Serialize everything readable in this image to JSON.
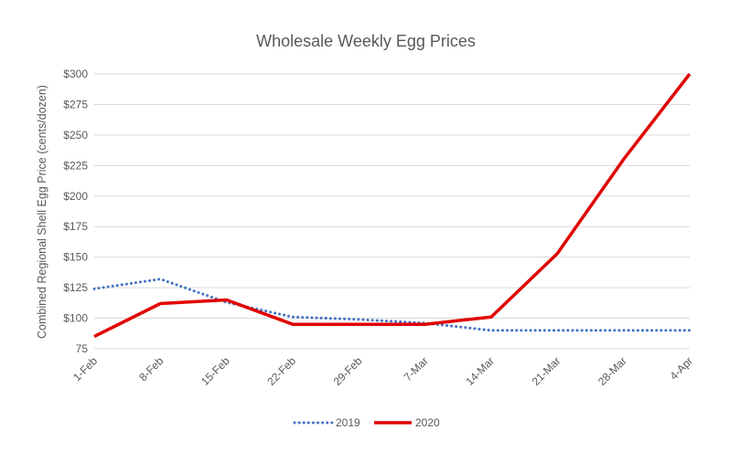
{
  "chart_data": {
    "type": "line",
    "title": "Wholesale Weekly Egg Prices",
    "xlabel": "",
    "ylabel": "Combined Regional Shell Egg Price (cents/dozen)",
    "categories": [
      "1-Feb",
      "8-Feb",
      "15-Feb",
      "22-Feb",
      "29-Feb",
      "7-Mar",
      "14-Mar",
      "21-Mar",
      "28-Mar",
      "4-Apr"
    ],
    "ylim": [
      75,
      300
    ],
    "yticks": [
      75,
      100,
      125,
      150,
      175,
      200,
      225,
      250,
      275,
      300
    ],
    "ytick_labels": [
      "75",
      "$100",
      "$125",
      "$150",
      "$175",
      "$200",
      "$225",
      "$250",
      "$275",
      "$300"
    ],
    "grid": true,
    "legend_position": "bottom",
    "series": [
      {
        "name": "2019",
        "color": "#4472c4",
        "style": "dotted",
        "values": [
          124,
          132,
          113,
          101,
          99,
          96,
          90,
          90,
          90,
          90
        ]
      },
      {
        "name": "2020",
        "color": "#e00000",
        "style": "solid",
        "values": [
          85,
          112,
          115,
          95,
          95,
          95,
          101,
          153,
          230,
          300
        ]
      }
    ]
  }
}
